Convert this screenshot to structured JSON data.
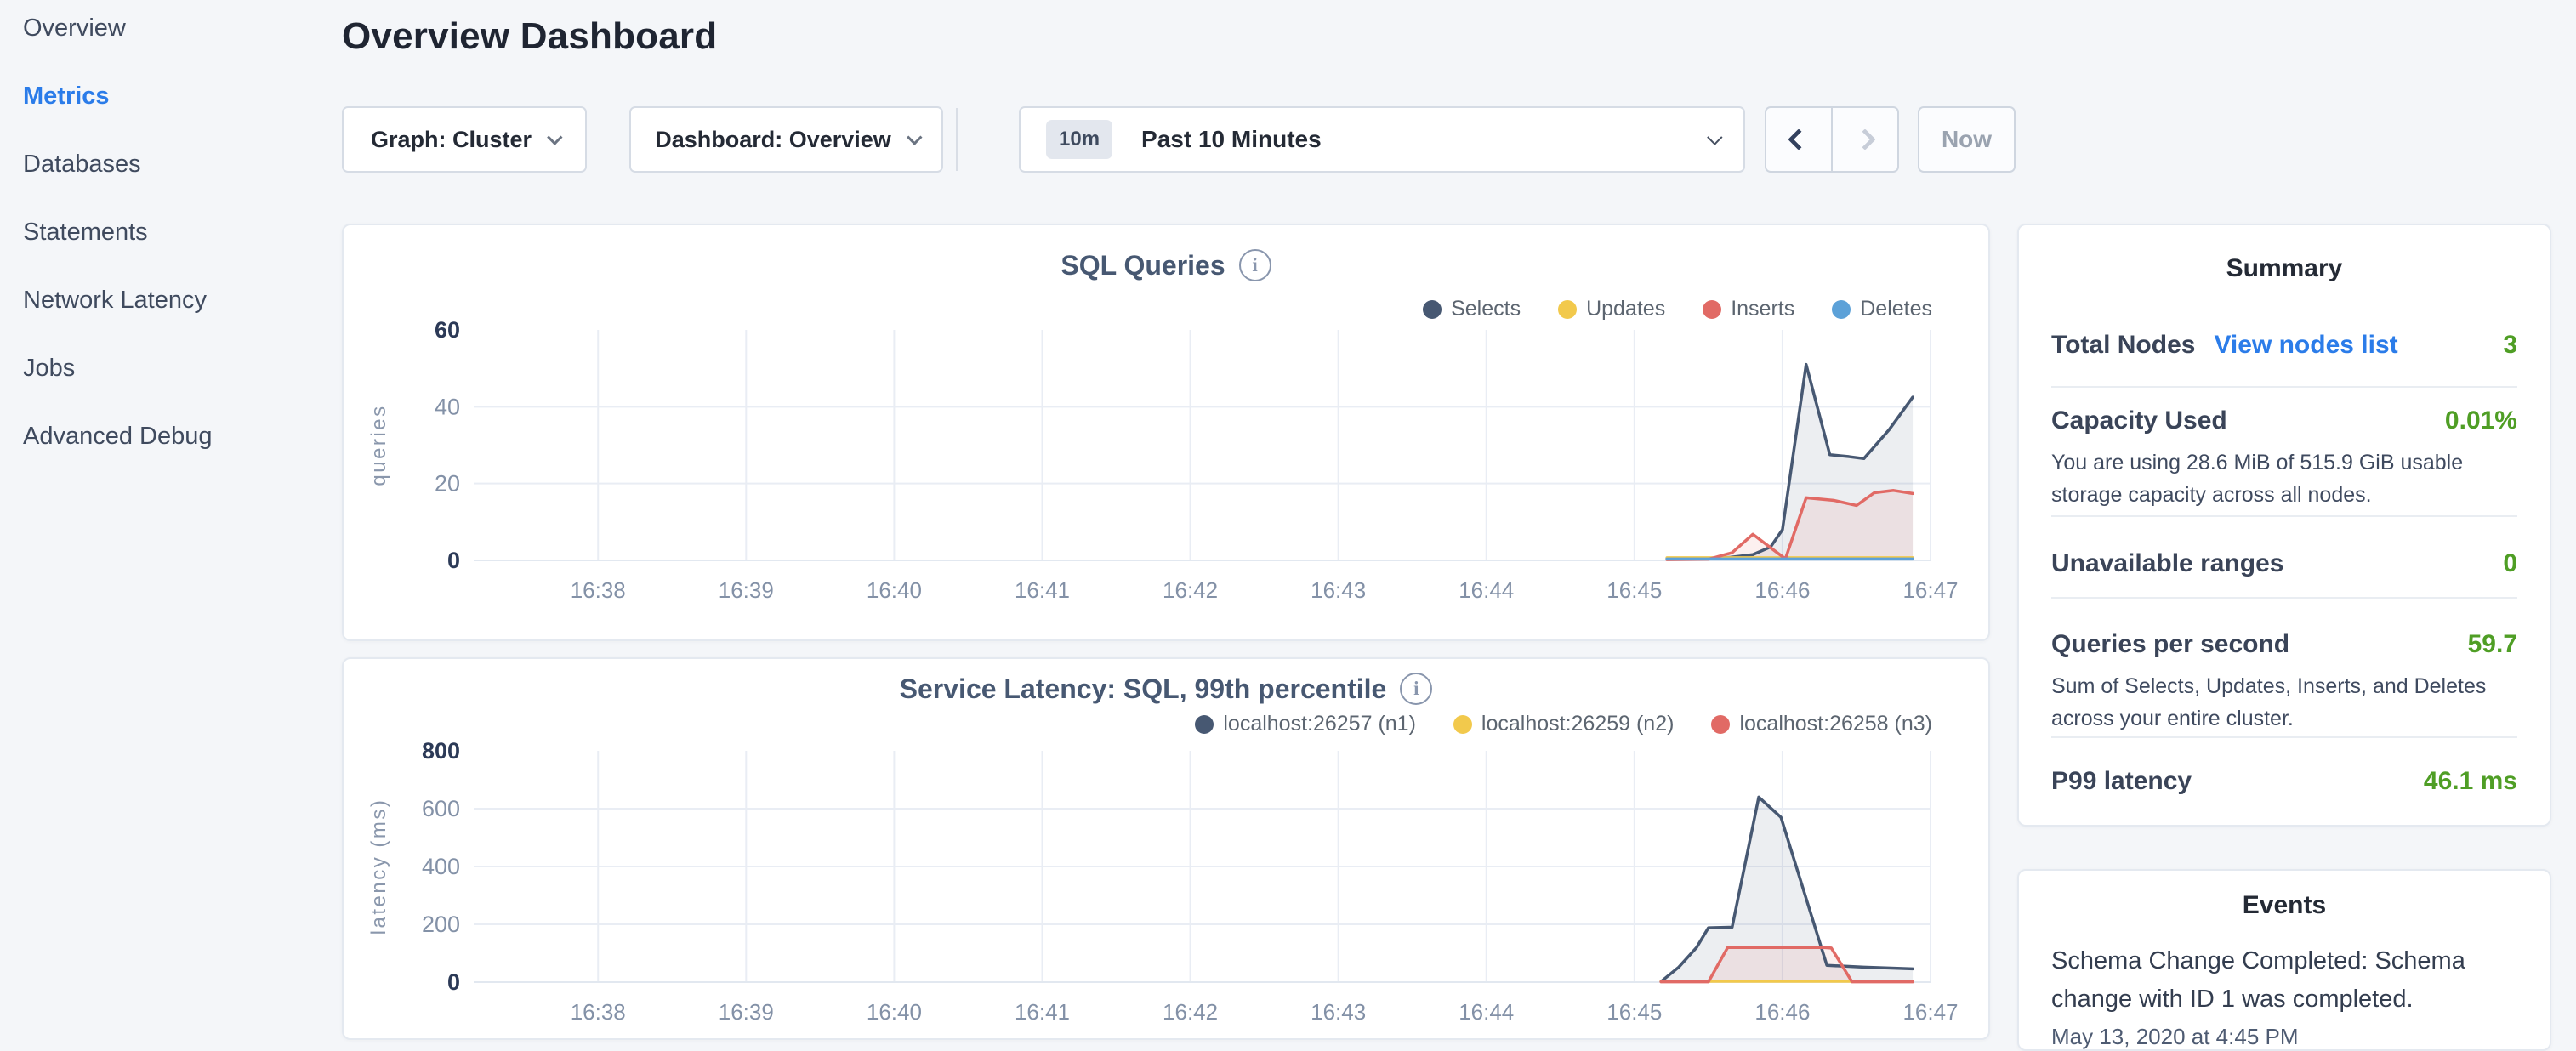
{
  "sidebar": {
    "items": [
      {
        "label": "Overview",
        "active": false
      },
      {
        "label": "Metrics",
        "active": true
      },
      {
        "label": "Databases",
        "active": false
      },
      {
        "label": "Statements",
        "active": false
      },
      {
        "label": "Network Latency",
        "active": false
      },
      {
        "label": "Jobs",
        "active": false
      },
      {
        "label": "Advanced Debug",
        "active": false
      }
    ]
  },
  "header": {
    "title": "Overview Dashboard"
  },
  "toolbar": {
    "graph_dropdown_label": "Graph: Cluster",
    "dashboard_dropdown_label": "Dashboard: Overview",
    "time_range": {
      "badge": "10m",
      "label": "Past 10 Minutes"
    },
    "now_label": "Now"
  },
  "icons": {
    "info": "i",
    "chevron_down": "chevron-down",
    "chevron_left": "chevron-left",
    "chevron_right": "chevron-right"
  },
  "colors": {
    "accent_blue": "#2b7ce9",
    "status_green": "#4f9e25",
    "series_navy": "#475872",
    "series_yellow": "#f2c94c",
    "series_red": "#e16a65",
    "series_blue": "#5ca1d8",
    "grid": "#e9edf4"
  },
  "chart_data": [
    {
      "type": "area",
      "title": "SQL Queries",
      "ylabel": "queries",
      "xlabel": "",
      "xlim": [
        37.16,
        47
      ],
      "ylim": [
        0,
        60
      ],
      "yticks": [
        0,
        20,
        40,
        60
      ],
      "xtick_values": [
        38,
        39,
        40,
        41,
        42,
        43,
        44,
        45,
        46,
        47
      ],
      "xtick_labels": [
        "16:38",
        "16:39",
        "16:40",
        "16:41",
        "16:42",
        "16:43",
        "16:44",
        "16:45",
        "16:46",
        "16:47"
      ],
      "legend_position": "top-right",
      "grid": true,
      "series": [
        {
          "name": "Selects",
          "color": "#475872",
          "fill": "rgba(71,88,114,0.10)",
          "points": [
            [
              45.22,
              0.5
            ],
            [
              45.5,
              0.5
            ],
            [
              45.65,
              0.8
            ],
            [
              45.8,
              1.5
            ],
            [
              45.92,
              3.5
            ],
            [
              46.0,
              8
            ],
            [
              46.16,
              51
            ],
            [
              46.32,
              27.5
            ],
            [
              46.45,
              27
            ],
            [
              46.55,
              26.5
            ],
            [
              46.72,
              34
            ],
            [
              46.88,
              42.5
            ]
          ]
        },
        {
          "name": "Updates",
          "color": "#f2c94c",
          "points": [
            [
              45.22,
              0.7
            ],
            [
              46.88,
              0.7
            ]
          ]
        },
        {
          "name": "Inserts",
          "color": "#e16a65",
          "fill": "rgba(225,106,101,0.10)",
          "points": [
            [
              45.22,
              0.2
            ],
            [
              45.5,
              0.3
            ],
            [
              45.66,
              2
            ],
            [
              45.8,
              6.8
            ],
            [
              45.93,
              3
            ],
            [
              46.02,
              0.4
            ],
            [
              46.16,
              16.3
            ],
            [
              46.35,
              15.6
            ],
            [
              46.5,
              14.3
            ],
            [
              46.62,
              17.6
            ],
            [
              46.75,
              18.2
            ],
            [
              46.88,
              17.4
            ]
          ]
        },
        {
          "name": "Deletes",
          "color": "#5ca1d8",
          "points": [
            [
              45.22,
              0.35
            ],
            [
              46.88,
              0.35
            ]
          ]
        }
      ]
    },
    {
      "type": "area",
      "title": "Service Latency: SQL, 99th percentile",
      "ylabel": "latency (ms)",
      "xlabel": "",
      "xlim": [
        37.16,
        47
      ],
      "ylim": [
        0,
        800
      ],
      "yticks": [
        0,
        200,
        400,
        600,
        800
      ],
      "xtick_values": [
        38,
        39,
        40,
        41,
        42,
        43,
        44,
        45,
        46,
        47
      ],
      "xtick_labels": [
        "16:38",
        "16:39",
        "16:40",
        "16:41",
        "16:42",
        "16:43",
        "16:44",
        "16:45",
        "16:46",
        "16:47"
      ],
      "legend_position": "top-right",
      "grid": true,
      "series": [
        {
          "name": "localhost:26257 (n1)",
          "color": "#475872",
          "fill": "rgba(71,88,114,0.10)",
          "points": [
            [
              45.18,
              2
            ],
            [
              45.3,
              52
            ],
            [
              45.42,
              120
            ],
            [
              45.5,
              188
            ],
            [
              45.66,
              190
            ],
            [
              45.84,
              640
            ],
            [
              45.9,
              612
            ],
            [
              45.99,
              570
            ],
            [
              46.3,
              58
            ],
            [
              46.55,
              52
            ],
            [
              46.88,
              46
            ]
          ]
        },
        {
          "name": "localhost:26259 (n2)",
          "color": "#f2c94c",
          "points": [
            [
              45.18,
              3
            ],
            [
              46.88,
              3
            ]
          ]
        },
        {
          "name": "localhost:26258 (n3)",
          "color": "#e16a65",
          "fill": "rgba(225,106,101,0.10)",
          "points": [
            [
              45.18,
              1
            ],
            [
              45.5,
              1
            ],
            [
              45.63,
              120
            ],
            [
              46.28,
              120
            ],
            [
              46.33,
              118
            ],
            [
              46.47,
              1
            ],
            [
              46.88,
              1
            ]
          ]
        }
      ]
    }
  ],
  "summary": {
    "title": "Summary",
    "rows": [
      {
        "label": "Total Nodes",
        "link": "View nodes list",
        "value": "3"
      },
      {
        "label": "Capacity Used",
        "value": "0.01%",
        "subtext": "You are using 28.6 MiB of 515.9 GiB usable storage capacity across all nodes."
      },
      {
        "label": "Unavailable ranges",
        "value": "0"
      },
      {
        "label": "Queries per second",
        "value": "59.7",
        "subtext": "Sum of Selects, Updates, Inserts, and Deletes across your entire cluster."
      },
      {
        "label": "P99 latency",
        "value": "46.1 ms"
      }
    ]
  },
  "events": {
    "title": "Events",
    "items": [
      {
        "text": "Schema Change Completed: Schema change with ID 1 was completed.",
        "timestamp": "May 13, 2020 at 4:45 PM"
      }
    ]
  }
}
